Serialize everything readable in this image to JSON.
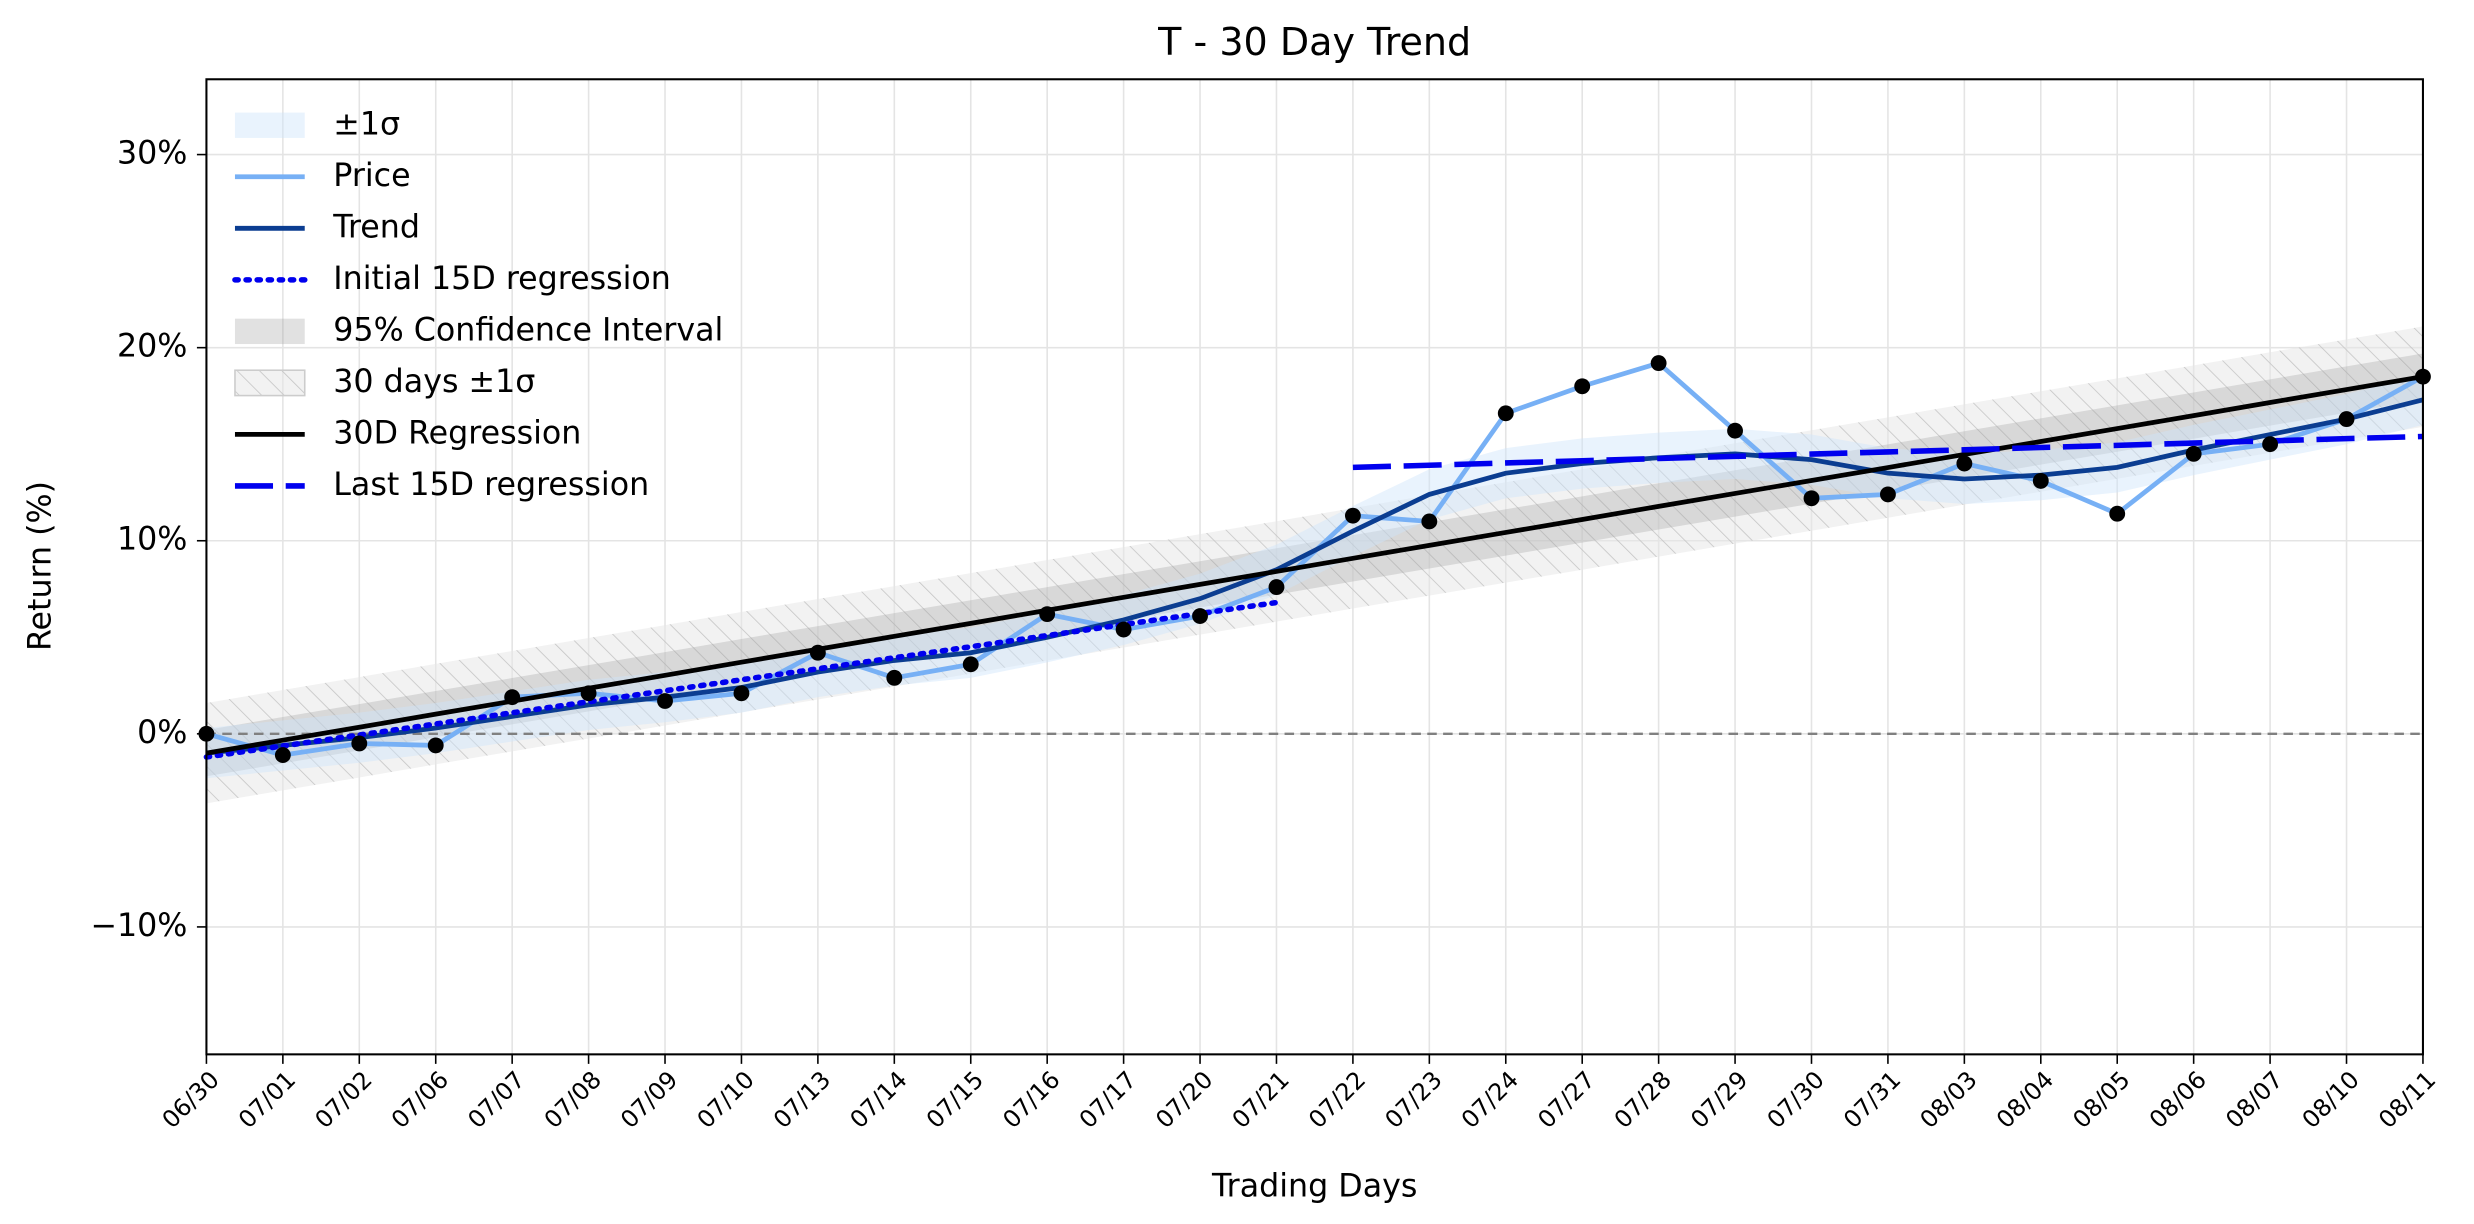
{
  "chart_data": {
    "type": "line",
    "title": "T - 30 Day Trend",
    "xlabel": "Trading Days",
    "ylabel": "Return (%)",
    "categories": [
      "06/30",
      "07/01",
      "07/02",
      "07/06",
      "07/07",
      "07/08",
      "07/09",
      "07/10",
      "07/13",
      "07/14",
      "07/15",
      "07/16",
      "07/17",
      "07/20",
      "07/21",
      "07/22",
      "07/23",
      "07/24",
      "07/27",
      "07/28",
      "07/29",
      "07/30",
      "07/31",
      "08/03",
      "08/04",
      "08/05",
      "08/06",
      "08/07",
      "08/10",
      "08/11"
    ],
    "ylim": [
      -16.6,
      33.9
    ],
    "yticks": [
      {
        "value": -10,
        "label": "−10%"
      },
      {
        "value": 0,
        "label": "0%"
      },
      {
        "value": 10,
        "label": "10%"
      },
      {
        "value": 20,
        "label": "20%"
      },
      {
        "value": 30,
        "label": "30%"
      }
    ],
    "grid": true,
    "legend": "upper left",
    "reference_line": {
      "value": 0,
      "color": "#808080",
      "style": "dashed"
    },
    "series": [
      {
        "name": "±1σ",
        "kind": "band",
        "color": "#cfe5fb",
        "opacity": 0.45,
        "lower": [
          -2.3,
          -1.9,
          -1.5,
          -1.0,
          -0.4,
          0.2,
          0.6,
          1.1,
          1.9,
          2.5,
          2.9,
          3.7,
          4.6,
          5.7,
          7.2,
          9.2,
          11.1,
          12.2,
          12.7,
          13.0,
          13.2,
          12.9,
          12.2,
          11.9,
          12.1,
          12.5,
          13.4,
          14.2,
          15.0,
          16.0
        ],
        "upper": [
          0.3,
          0.7,
          1.1,
          1.6,
          2.2,
          2.8,
          3.2,
          3.7,
          4.5,
          5.1,
          5.5,
          6.3,
          7.2,
          8.3,
          9.8,
          11.8,
          13.7,
          14.8,
          15.3,
          15.6,
          15.8,
          15.5,
          14.8,
          14.5,
          14.7,
          15.1,
          16.0,
          16.8,
          17.6,
          18.6
        ]
      },
      {
        "name": "Price",
        "kind": "line",
        "color": "#77b0f5",
        "width": 3,
        "style": "solid",
        "marker_color": "#000000",
        "values": [
          0,
          -1.1,
          -0.5,
          -0.6,
          1.9,
          2.1,
          1.7,
          2.1,
          4.2,
          2.9,
          3.6,
          6.2,
          5.4,
          6.1,
          7.6,
          11.3,
          11.0,
          16.6,
          18.0,
          19.2,
          15.7,
          12.2,
          12.4,
          14.0,
          13.1,
          11.4,
          14.5,
          15.0,
          16.3,
          18.5
        ]
      },
      {
        "name": "Trend",
        "kind": "line",
        "color": "#0b3d91",
        "width": 3,
        "style": "solid",
        "values": [
          -1.0,
          -0.6,
          -0.2,
          0.3,
          0.9,
          1.5,
          1.9,
          2.4,
          3.2,
          3.8,
          4.2,
          5.0,
          5.9,
          7.0,
          8.5,
          10.5,
          12.4,
          13.5,
          14.0,
          14.3,
          14.5,
          14.2,
          13.5,
          13.2,
          13.4,
          13.8,
          14.7,
          15.5,
          16.3,
          17.3
        ]
      },
      {
        "name": "Initial 15D regression",
        "kind": "line",
        "color": "#0000ee",
        "width": 3.5,
        "style": "dotted",
        "values": [
          -1.2,
          -0.63,
          -0.06,
          0.51,
          1.09,
          1.66,
          2.23,
          2.8,
          3.37,
          3.94,
          4.51,
          5.09,
          5.66,
          6.23,
          6.8,
          null,
          null,
          null,
          null,
          null,
          null,
          null,
          null,
          null,
          null,
          null,
          null,
          null,
          null,
          null
        ]
      },
      {
        "name": "95% Confidence Interval",
        "kind": "band",
        "color": "#9a9a9a",
        "opacity": 0.3,
        "lower": [
          -2.2,
          -1.53,
          -0.86,
          -0.18,
          0.49,
          1.16,
          1.83,
          2.51,
          3.18,
          3.85,
          4.52,
          5.2,
          5.87,
          6.54,
          7.21,
          7.89,
          8.56,
          9.23,
          9.9,
          10.58,
          11.25,
          11.92,
          12.59,
          13.27,
          13.94,
          14.61,
          15.28,
          15.96,
          16.63,
          17.3
        ],
        "upper": [
          0.2,
          0.87,
          1.54,
          2.22,
          2.89,
          3.56,
          4.23,
          4.91,
          5.58,
          6.25,
          6.92,
          7.6,
          8.27,
          8.94,
          9.61,
          10.29,
          10.96,
          11.63,
          12.3,
          12.98,
          13.65,
          14.32,
          14.99,
          15.67,
          16.34,
          17.01,
          17.68,
          18.36,
          19.03,
          19.7
        ]
      },
      {
        "name": "30 days ±1σ",
        "kind": "band",
        "color": "#d8d8d8",
        "opacity": 0.5,
        "hatch": true,
        "lower": [
          -3.6,
          -2.93,
          -2.26,
          -1.58,
          -0.91,
          -0.24,
          0.43,
          1.11,
          1.78,
          2.45,
          3.12,
          3.8,
          4.47,
          5.14,
          5.81,
          6.49,
          7.16,
          7.83,
          8.5,
          9.18,
          9.85,
          10.52,
          11.19,
          11.87,
          12.54,
          13.21,
          13.88,
          14.56,
          15.23,
          15.9
        ],
        "upper": [
          1.6,
          2.27,
          2.94,
          3.62,
          4.29,
          4.96,
          5.63,
          6.31,
          6.98,
          7.65,
          8.32,
          9.0,
          9.67,
          10.34,
          11.01,
          11.69,
          12.36,
          13.03,
          13.7,
          14.38,
          15.05,
          15.72,
          16.39,
          17.07,
          17.74,
          18.41,
          19.08,
          19.76,
          20.43,
          21.1
        ]
      },
      {
        "name": "30D Regression",
        "kind": "line",
        "color": "#000000",
        "width": 3,
        "style": "solid",
        "values": [
          -1.0,
          -0.33,
          0.34,
          1.02,
          1.69,
          2.36,
          3.03,
          3.71,
          4.38,
          5.05,
          5.72,
          6.4,
          7.07,
          7.74,
          8.41,
          9.09,
          9.76,
          10.43,
          11.1,
          11.78,
          12.45,
          13.12,
          13.79,
          14.47,
          15.14,
          15.81,
          16.48,
          17.16,
          17.83,
          18.5
        ]
      },
      {
        "name": "Last 15D regression",
        "kind": "line",
        "color": "#0000ee",
        "width": 3.5,
        "style": "dashed",
        "values": [
          null,
          null,
          null,
          null,
          null,
          null,
          null,
          null,
          null,
          null,
          null,
          null,
          null,
          null,
          null,
          13.8,
          13.91,
          14.03,
          14.14,
          14.26,
          14.37,
          14.49,
          14.6,
          14.71,
          14.83,
          14.94,
          15.06,
          15.17,
          15.29,
          15.4
        ]
      }
    ]
  }
}
